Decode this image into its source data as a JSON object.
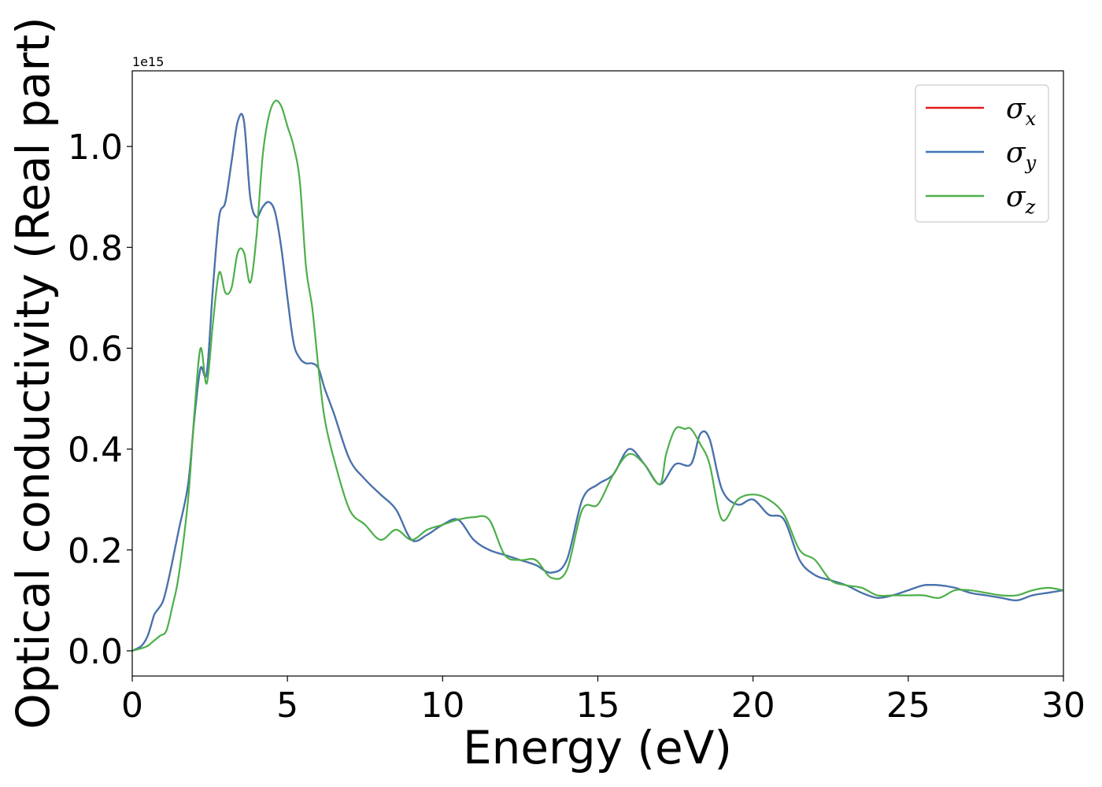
{
  "chart_data": {
    "type": "line",
    "xlabel": "Energy (eV)",
    "ylabel": "Optical conductivity (Real part)",
    "y_offset_text": "1e15",
    "xlim": [
      0,
      30
    ],
    "ylim": [
      -0.05,
      1.15
    ],
    "xticks": [
      0,
      5,
      10,
      15,
      20,
      25,
      30
    ],
    "xtick_labels": [
      "0",
      "5",
      "10",
      "15",
      "20",
      "25",
      "30"
    ],
    "yticks": [
      0.0,
      0.2,
      0.4,
      0.6,
      0.8,
      1.0
    ],
    "ytick_labels": [
      "0.0",
      "0.2",
      "0.4",
      "0.6",
      "0.8",
      "1.0"
    ],
    "grid": false,
    "legend_position": "top-right",
    "series": [
      {
        "name": "σx",
        "symbol": "σ",
        "subscript": "x",
        "color": "#e41a1c",
        "x": [
          0,
          0.3,
          0.5,
          0.7,
          0.8,
          1.0,
          1.2,
          1.5,
          1.8,
          2.0,
          2.2,
          2.4,
          2.6,
          2.8,
          3.0,
          3.2,
          3.4,
          3.6,
          3.8,
          4.0,
          4.2,
          4.4,
          4.6,
          4.8,
          5.0,
          5.2,
          5.4,
          5.6,
          5.8,
          6.0,
          6.2,
          6.5,
          7.0,
          7.5,
          8.0,
          8.5,
          9.0,
          9.5,
          10.0,
          10.5,
          11.0,
          11.5,
          12.0,
          12.5,
          13.0,
          13.5,
          14.0,
          14.5,
          15.0,
          15.5,
          16.0,
          16.5,
          17.0,
          17.5,
          18.0,
          18.3,
          18.6,
          19.0,
          19.5,
          20.0,
          20.5,
          21.0,
          21.5,
          22.0,
          22.5,
          23.0,
          23.5,
          24.0,
          24.5,
          25.0,
          25.5,
          26.0,
          26.5,
          27.0,
          27.5,
          28.0,
          28.5,
          29.0,
          29.5,
          30.0
        ],
        "y": [
          0.0,
          0.01,
          0.03,
          0.07,
          0.08,
          0.1,
          0.15,
          0.24,
          0.33,
          0.46,
          0.56,
          0.55,
          0.72,
          0.86,
          0.89,
          0.97,
          1.05,
          1.05,
          0.9,
          0.86,
          0.88,
          0.89,
          0.87,
          0.8,
          0.7,
          0.61,
          0.58,
          0.57,
          0.57,
          0.56,
          0.52,
          0.47,
          0.38,
          0.34,
          0.31,
          0.28,
          0.22,
          0.23,
          0.25,
          0.26,
          0.22,
          0.2,
          0.19,
          0.18,
          0.17,
          0.155,
          0.18,
          0.3,
          0.33,
          0.35,
          0.4,
          0.37,
          0.33,
          0.37,
          0.37,
          0.43,
          0.42,
          0.32,
          0.29,
          0.3,
          0.27,
          0.26,
          0.18,
          0.15,
          0.14,
          0.13,
          0.115,
          0.105,
          0.11,
          0.12,
          0.13,
          0.13,
          0.125,
          0.115,
          0.11,
          0.105,
          0.1,
          0.11,
          0.115,
          0.12
        ]
      },
      {
        "name": "σy",
        "symbol": "σ",
        "subscript": "y",
        "color": "#3f77b4",
        "x": [
          0,
          0.3,
          0.5,
          0.7,
          0.8,
          1.0,
          1.2,
          1.5,
          1.8,
          2.0,
          2.2,
          2.4,
          2.6,
          2.8,
          3.0,
          3.2,
          3.4,
          3.6,
          3.8,
          4.0,
          4.2,
          4.4,
          4.6,
          4.8,
          5.0,
          5.2,
          5.4,
          5.6,
          5.8,
          6.0,
          6.2,
          6.5,
          7.0,
          7.5,
          8.0,
          8.5,
          9.0,
          9.5,
          10.0,
          10.5,
          11.0,
          11.5,
          12.0,
          12.5,
          13.0,
          13.5,
          14.0,
          14.5,
          15.0,
          15.5,
          16.0,
          16.5,
          17.0,
          17.5,
          18.0,
          18.3,
          18.6,
          19.0,
          19.5,
          20.0,
          20.5,
          21.0,
          21.5,
          22.0,
          22.5,
          23.0,
          23.5,
          24.0,
          24.5,
          25.0,
          25.5,
          26.0,
          26.5,
          27.0,
          27.5,
          28.0,
          28.5,
          29.0,
          29.5,
          30.0
        ],
        "y": [
          0.0,
          0.01,
          0.03,
          0.07,
          0.08,
          0.1,
          0.15,
          0.24,
          0.33,
          0.46,
          0.56,
          0.55,
          0.72,
          0.86,
          0.89,
          0.97,
          1.05,
          1.05,
          0.9,
          0.86,
          0.88,
          0.89,
          0.87,
          0.8,
          0.7,
          0.61,
          0.58,
          0.57,
          0.57,
          0.56,
          0.52,
          0.47,
          0.38,
          0.34,
          0.31,
          0.28,
          0.22,
          0.23,
          0.25,
          0.26,
          0.22,
          0.2,
          0.19,
          0.18,
          0.17,
          0.155,
          0.18,
          0.3,
          0.33,
          0.35,
          0.4,
          0.37,
          0.33,
          0.37,
          0.37,
          0.43,
          0.42,
          0.32,
          0.29,
          0.3,
          0.27,
          0.26,
          0.18,
          0.15,
          0.14,
          0.13,
          0.115,
          0.105,
          0.11,
          0.12,
          0.13,
          0.13,
          0.125,
          0.115,
          0.11,
          0.105,
          0.1,
          0.11,
          0.115,
          0.12
        ]
      },
      {
        "name": "σz",
        "symbol": "σ",
        "subscript": "z",
        "color": "#4daf4a",
        "x": [
          0,
          0.3,
          0.5,
          0.7,
          0.9,
          1.1,
          1.3,
          1.5,
          1.8,
          2.0,
          2.2,
          2.4,
          2.6,
          2.8,
          3.0,
          3.2,
          3.4,
          3.6,
          3.8,
          4.0,
          4.2,
          4.4,
          4.6,
          4.8,
          5.0,
          5.2,
          5.4,
          5.6,
          5.8,
          6.0,
          6.2,
          6.5,
          7.0,
          7.5,
          8.0,
          8.5,
          9.0,
          9.5,
          10.0,
          10.5,
          11.0,
          11.5,
          12.0,
          12.5,
          13.0,
          13.5,
          14.0,
          14.5,
          15.0,
          15.5,
          16.0,
          16.5,
          17.0,
          17.2,
          17.5,
          17.8,
          18.0,
          18.3,
          18.6,
          19.0,
          19.5,
          20.0,
          20.5,
          21.0,
          21.5,
          22.0,
          22.5,
          23.0,
          23.5,
          24.0,
          24.5,
          25.0,
          25.5,
          26.0,
          26.5,
          27.0,
          27.5,
          28.0,
          28.5,
          29.0,
          29.5,
          30.0
        ],
        "y": [
          0.0,
          0.005,
          0.01,
          0.02,
          0.03,
          0.04,
          0.09,
          0.15,
          0.3,
          0.47,
          0.6,
          0.53,
          0.65,
          0.75,
          0.71,
          0.72,
          0.79,
          0.79,
          0.73,
          0.82,
          0.98,
          1.06,
          1.09,
          1.08,
          1.04,
          1.0,
          0.93,
          0.76,
          0.68,
          0.56,
          0.46,
          0.38,
          0.28,
          0.25,
          0.22,
          0.24,
          0.22,
          0.24,
          0.25,
          0.26,
          0.265,
          0.26,
          0.19,
          0.18,
          0.18,
          0.145,
          0.16,
          0.28,
          0.29,
          0.35,
          0.39,
          0.37,
          0.33,
          0.39,
          0.44,
          0.44,
          0.44,
          0.41,
          0.37,
          0.26,
          0.3,
          0.31,
          0.3,
          0.27,
          0.2,
          0.18,
          0.14,
          0.13,
          0.125,
          0.11,
          0.11,
          0.11,
          0.11,
          0.105,
          0.12,
          0.12,
          0.115,
          0.11,
          0.11,
          0.12,
          0.125,
          0.12
        ]
      }
    ]
  }
}
